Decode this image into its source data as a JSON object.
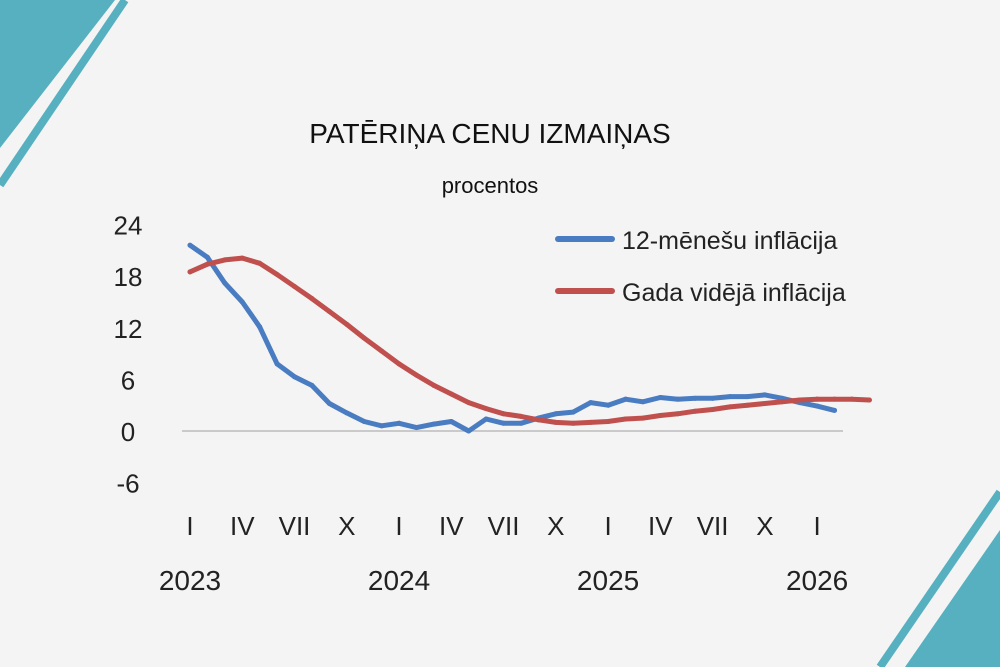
{
  "chart_data": {
    "type": "line",
    "title": "PATĒRIŅA CENU IZMAIŅAS",
    "subtitle": "procentos",
    "ylim": [
      -6,
      24
    ],
    "yticks": [
      24,
      18,
      12,
      6,
      0,
      -6
    ],
    "x_month_labels": [
      "I",
      "IV",
      "VII",
      "X",
      "I",
      "IV",
      "VII",
      "X",
      "I",
      "IV",
      "VII",
      "X",
      "I"
    ],
    "x_year_labels": [
      "2023",
      "2024",
      "2025",
      "2026"
    ],
    "grid": false,
    "legend_position": "top-right",
    "colors": {
      "blue": "#4a7cc2",
      "red": "#c0504d",
      "accent": "#56b0c0"
    },
    "series": [
      {
        "name": "12-mēnešu inflācija",
        "color": "#4a7cc2",
        "values": [
          21.6,
          20.2,
          17.2,
          15.0,
          12.1,
          7.8,
          6.3,
          5.3,
          3.2,
          2.1,
          1.1,
          0.6,
          0.9,
          0.4,
          0.8,
          1.1,
          0.0,
          1.4,
          0.9,
          0.9,
          1.5,
          2.0,
          2.2,
          3.3,
          3.0,
          3.7,
          3.4,
          3.9,
          3.7,
          3.8,
          3.8,
          4.0,
          4.0,
          4.2,
          3.8,
          3.3,
          2.9,
          2.4
        ]
      },
      {
        "name": "Gada vidējā inflācija",
        "color": "#c0504d",
        "values": [
          18.5,
          19.4,
          19.9,
          20.1,
          19.5,
          18.2,
          16.8,
          15.4,
          13.9,
          12.4,
          10.8,
          9.3,
          7.8,
          6.5,
          5.3,
          4.3,
          3.3,
          2.6,
          2.0,
          1.7,
          1.3,
          1.0,
          0.9,
          1.0,
          1.1,
          1.4,
          1.5,
          1.8,
          2.0,
          2.3,
          2.5,
          2.8,
          3.0,
          3.2,
          3.4,
          3.6,
          3.7,
          3.7,
          3.7,
          3.6
        ]
      }
    ]
  }
}
